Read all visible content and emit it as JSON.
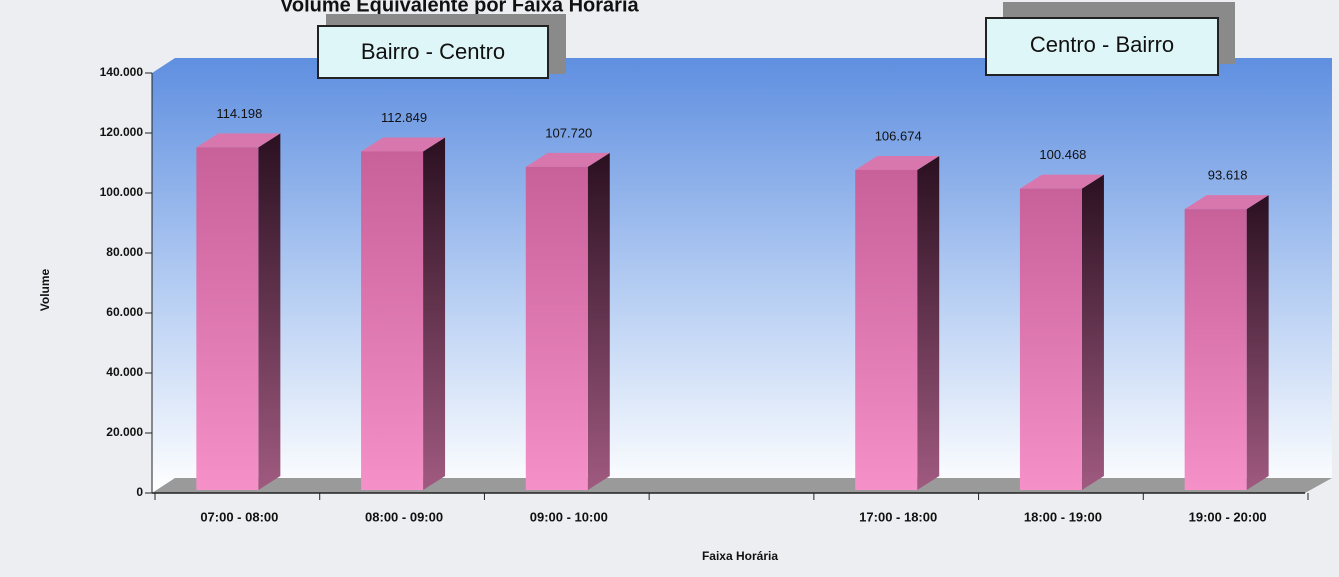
{
  "chart_data": {
    "type": "bar",
    "title": "Volume Equivalente por Faixa Horária",
    "x_label": "Faixa Horária",
    "y_label": "Volume",
    "categories": [
      "07:00 - 08:00",
      "08:00 - 09:00",
      "09:00 - 10:00",
      null,
      "17:00 - 18:00",
      "18:00 - 19:00",
      "19:00 - 20:00"
    ],
    "values": [
      114198,
      112849,
      107720,
      null,
      106674,
      100468,
      93618
    ],
    "value_labels": [
      "114.198",
      "112.849",
      "107.720",
      null,
      "106.674",
      "100.468",
      "93.618"
    ],
    "color": "#e87ab8",
    "ylim": [
      0,
      140000
    ],
    "yticks": [
      0,
      {
        "value": 20000,
        "label": "20.000"
      },
      {
        "value": 40000,
        "label": "40.000"
      },
      {
        "value": 60000,
        "label": "60.000"
      },
      {
        "value": 80000,
        "label": "80.000"
      },
      {
        "value": 100000,
        "label": "100.000"
      },
      {
        "value": 120000,
        "label": "120.000"
      },
      {
        "value": 140000,
        "label": "140.000"
      }
    ],
    "annotations": [
      "Bairro - Centro",
      "Centro - Bairro"
    ]
  }
}
